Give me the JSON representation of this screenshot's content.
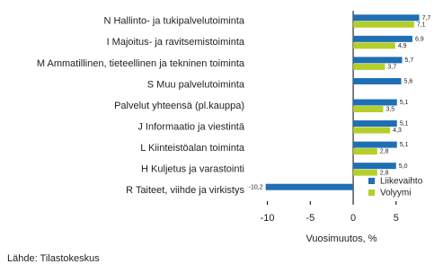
{
  "chart_data": {
    "type": "hbar",
    "categories": [
      "N Hallinto- ja tukipalvelutoiminta",
      "I Majoitus- ja ravitsemistoiminta",
      "M Ammatillinen, tieteellinen ja tekninen toiminta",
      "S Muu palvelutoiminta",
      "Palvelut yhteensä (pl.kauppa)",
      "J Informaatio ja viestintä",
      "L Kiinteistöalan toiminta",
      "H Kuljetus ja varastointi",
      "R Taiteet, viihde ja virkistys"
    ],
    "series": [
      {
        "name": "Liikevaihto",
        "color": "#1f6fb4",
        "values": [
          7.7,
          6.9,
          5.7,
          5.6,
          5.1,
          5.1,
          5.1,
          5.0,
          -10.2
        ],
        "value_labels": [
          "7,7",
          "6,9",
          "5,7",
          "5,6",
          "5,1",
          "5,1",
          "5,1",
          "5,0",
          "-10,2"
        ]
      },
      {
        "name": "Volyymi",
        "color": "#b5cf2a",
        "values": [
          7.1,
          4.9,
          3.7,
          null,
          3.5,
          4.3,
          2.8,
          2.8,
          null
        ],
        "value_labels": [
          "7,1",
          "4,9",
          "3,7",
          null,
          "3,5",
          "4,3",
          "2,8",
          "2,8",
          null
        ]
      }
    ],
    "xlim": [
      -11,
      9
    ],
    "xticks": [
      -10,
      -5,
      0,
      5
    ],
    "xlabel": "Vuosimuutos, %",
    "source": "Lähde: Tilastokeskus",
    "legend": "lower right"
  }
}
